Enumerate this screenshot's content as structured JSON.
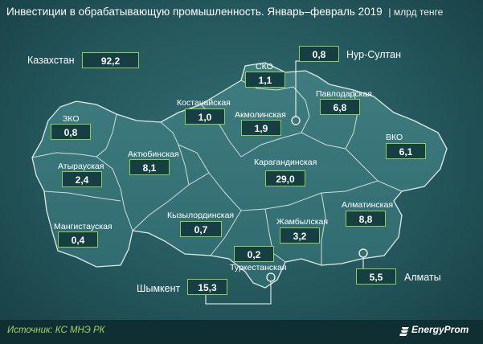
{
  "title": "Инвестиции в обрабатывающую промышленность. Январь–февраль 2019",
  "unit": "| млрд тенге",
  "total": {
    "label": "Казахстан",
    "value": "92,2"
  },
  "regions": [
    {
      "id": "nur-sultan",
      "name": "Нур-Султан",
      "value": "0,8"
    },
    {
      "id": "sko",
      "name": "СКО",
      "value": "1,1"
    },
    {
      "id": "pavlodar",
      "name": "Павлодарская",
      "value": "6,8"
    },
    {
      "id": "kostanay",
      "name": "Костанайская",
      "value": "1,0"
    },
    {
      "id": "akmola",
      "name": "Акмолинская",
      "value": "1,9"
    },
    {
      "id": "zko",
      "name": "ЗКО",
      "value": "0,8"
    },
    {
      "id": "vko",
      "name": "ВКО",
      "value": "6,1"
    },
    {
      "id": "aktobe",
      "name": "Актюбинская",
      "value": "8,1"
    },
    {
      "id": "atyrau",
      "name": "Атырауская",
      "value": "2,4"
    },
    {
      "id": "karaganda",
      "name": "Карагандинская",
      "value": "29,0"
    },
    {
      "id": "kyzylorda",
      "name": "Кызылординская",
      "value": "0,7"
    },
    {
      "id": "almaty-region",
      "name": "Алматинская",
      "value": "8,8"
    },
    {
      "id": "zhambyl",
      "name": "Жамбылская",
      "value": "3,2"
    },
    {
      "id": "mangystau",
      "name": "Мангистауская",
      "value": "0,4"
    },
    {
      "id": "turkestan",
      "name": "Туркестанская",
      "value": "0,2"
    },
    {
      "id": "almaty-city",
      "name": "Алматы",
      "value": "5,5"
    },
    {
      "id": "shymkent",
      "name": "Шымкент",
      "value": "15,3"
    }
  ],
  "source": "Источник: КС МНЭ РК",
  "brand": "EnergyProm",
  "colors": {
    "accent": "#8fce57",
    "background": "#24575c",
    "box": "#163f43"
  }
}
